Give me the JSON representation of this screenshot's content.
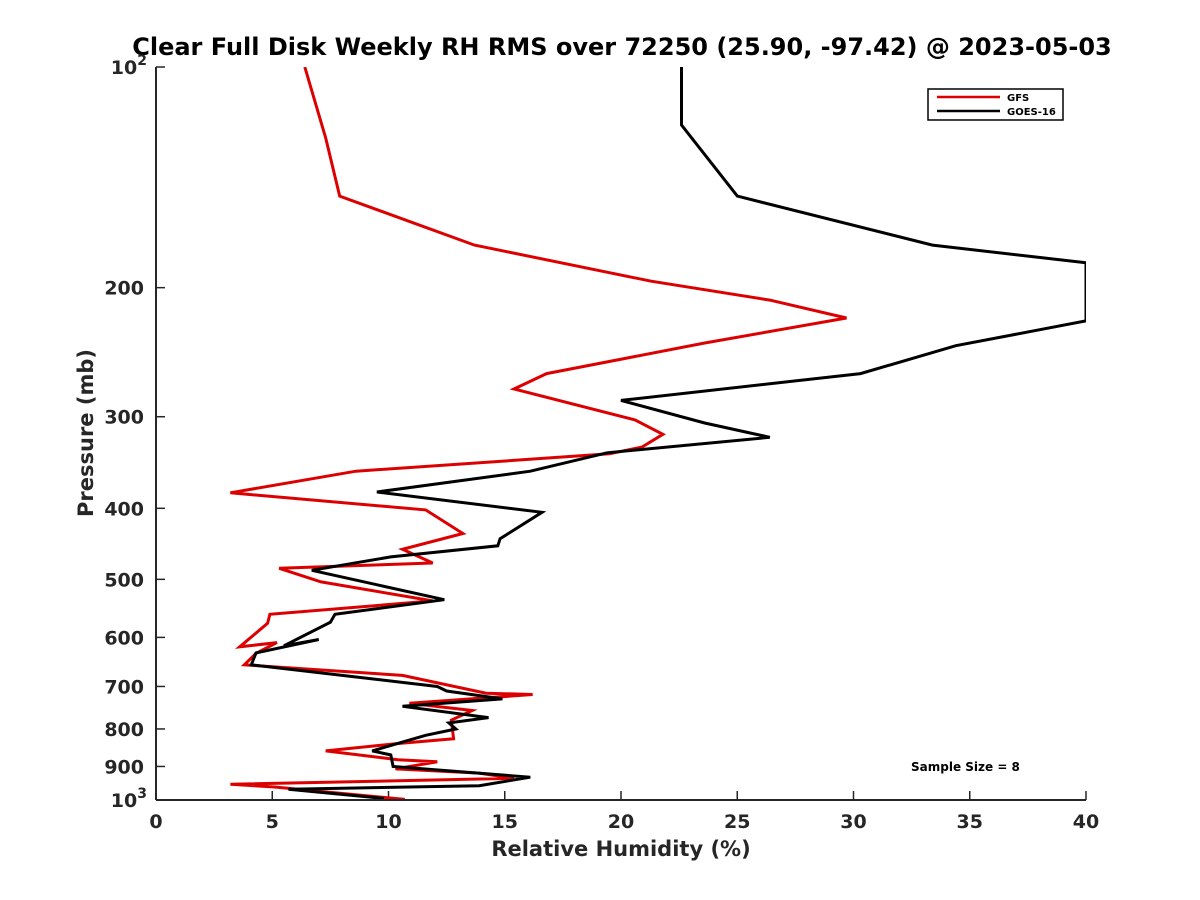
{
  "chart_data": {
    "type": "line",
    "title": "Clear Full Disk Weekly RH RMS over 72250 (25.90, -97.42) @ 2023-05-03",
    "xlabel": "Relative Humidity (%)",
    "ylabel": "Pressure (mb)",
    "xlim": [
      0,
      40
    ],
    "ylim": [
      100,
      1000
    ],
    "yscale": "log",
    "y_reversed": true,
    "x_ticks": [
      "0",
      "5",
      "10",
      "15",
      "20",
      "25",
      "30",
      "35",
      "40"
    ],
    "y_ticks": [
      {
        "value": 100,
        "label": "10",
        "sup": "2"
      },
      {
        "value": 200,
        "label": "200",
        "sup": ""
      },
      {
        "value": 300,
        "label": "300",
        "sup": ""
      },
      {
        "value": 400,
        "label": "400",
        "sup": ""
      },
      {
        "value": 500,
        "label": "500",
        "sup": ""
      },
      {
        "value": 600,
        "label": "600",
        "sup": ""
      },
      {
        "value": 700,
        "label": "700",
        "sup": ""
      },
      {
        "value": 800,
        "label": "800",
        "sup": ""
      },
      {
        "value": 900,
        "label": "900",
        "sup": ""
      },
      {
        "value": 1000,
        "label": "10",
        "sup": "3"
      }
    ],
    "grid": false,
    "legend_position": "top-right",
    "annotation": "Sample Size = 8",
    "series": [
      {
        "name": "GFS",
        "color": "#dd0000",
        "points": [
          [
            6.4,
            100
          ],
          [
            7.3,
            125
          ],
          [
            7.9,
            150
          ],
          [
            13.7,
            175
          ],
          [
            21.3,
            196
          ],
          [
            26.4,
            208
          ],
          [
            29.7,
            220
          ],
          [
            23.6,
            238
          ],
          [
            16.8,
            262
          ],
          [
            15.4,
            275
          ],
          [
            20.6,
            303
          ],
          [
            21.8,
            317
          ],
          [
            20.9,
            330
          ],
          [
            19.5,
            337
          ],
          [
            8.6,
            356
          ],
          [
            3.2,
            381
          ],
          [
            11.6,
            402
          ],
          [
            13.2,
            433
          ],
          [
            10.6,
            455
          ],
          [
            11.9,
            475
          ],
          [
            5.3,
            483
          ],
          [
            7.1,
            504
          ],
          [
            11.9,
            535
          ],
          [
            4.9,
            558
          ],
          [
            4.8,
            574
          ],
          [
            3.6,
            618
          ],
          [
            5.2,
            610
          ],
          [
            4.3,
            631
          ],
          [
            3.8,
            654
          ],
          [
            10.6,
            676
          ],
          [
            14.2,
            715
          ],
          [
            16.2,
            718
          ],
          [
            10.9,
            738
          ],
          [
            13.6,
            755
          ],
          [
            12.7,
            778
          ],
          [
            12.8,
            825
          ],
          [
            10.3,
            838
          ],
          [
            7.3,
            857
          ],
          [
            10.4,
            881
          ],
          [
            12.1,
            887
          ],
          [
            10.3,
            907
          ],
          [
            13.9,
            919
          ],
          [
            15.4,
            934
          ],
          [
            3.2,
            952
          ],
          [
            5.1,
            960
          ],
          [
            10.7,
            998
          ]
        ]
      },
      {
        "name": "GOES-16",
        "color": "#000000",
        "points": [
          [
            22.6,
            100
          ],
          [
            22.6,
            110
          ],
          [
            22.6,
            120
          ],
          [
            25.0,
            150
          ],
          [
            33.4,
            175
          ],
          [
            40.0,
            185
          ],
          [
            40.0,
            222
          ],
          [
            34.4,
            240
          ],
          [
            30.3,
            262
          ],
          [
            20.0,
            285
          ],
          [
            23.6,
            306
          ],
          [
            26.4,
            320
          ],
          [
            19.4,
            336
          ],
          [
            16.1,
            356
          ],
          [
            9.5,
            380
          ],
          [
            16.6,
            405
          ],
          [
            14.8,
            440
          ],
          [
            14.7,
            450
          ],
          [
            10.1,
            466
          ],
          [
            6.7,
            486
          ],
          [
            12.4,
            533
          ],
          [
            7.7,
            558
          ],
          [
            7.5,
            572
          ],
          [
            5.5,
            616
          ],
          [
            7.0,
            604
          ],
          [
            4.3,
            630
          ],
          [
            4.1,
            654
          ],
          [
            8.7,
            680
          ],
          [
            12.1,
            700
          ],
          [
            12.5,
            710
          ],
          [
            14.9,
            728
          ],
          [
            10.6,
            745
          ],
          [
            14.3,
            772
          ],
          [
            12.6,
            785
          ],
          [
            12.9,
            800
          ],
          [
            11.6,
            816
          ],
          [
            9.3,
            857
          ],
          [
            10.1,
            868
          ],
          [
            10.2,
            900
          ],
          [
            16.1,
            931
          ],
          [
            13.9,
            956
          ],
          [
            5.7,
            967
          ],
          [
            9.8,
            995
          ]
        ]
      }
    ]
  }
}
